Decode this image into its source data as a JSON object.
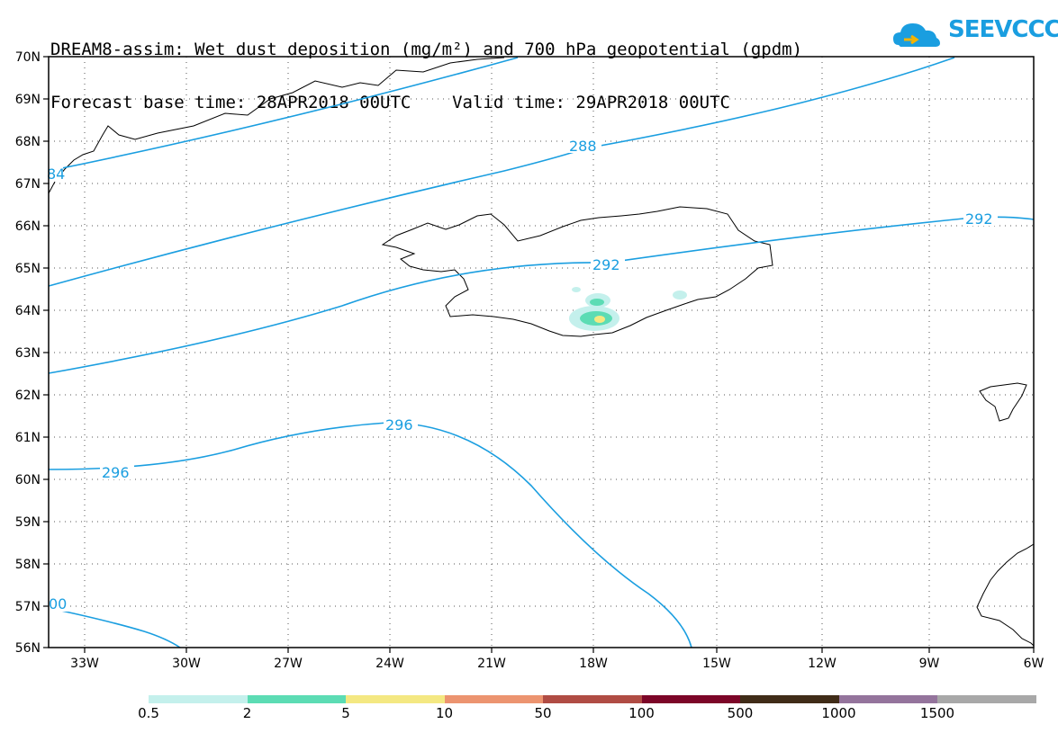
{
  "title": {
    "line1": "DREAM8-assim: Wet dust deposition (mg/m²) and 700 hPa geopotential (gpdm)",
    "line2": "Forecast base time: 28APR2018 00UTC    Valid time: 29APR2018 00UTC"
  },
  "logo": {
    "text": "SEEVCCC",
    "icon": "cloud-icon",
    "color": "#1a9ee0"
  },
  "map": {
    "lat_labels": [
      "70N",
      "69N",
      "68N",
      "67N",
      "66N",
      "65N",
      "64N",
      "63N",
      "62N",
      "61N",
      "60N",
      "59N",
      "58N",
      "57N",
      "56N"
    ],
    "lon_labels": [
      "33W",
      "30W",
      "27W",
      "24W",
      "21W",
      "18W",
      "15W",
      "12W",
      "9W",
      "6W"
    ],
    "contour_color": "#1a9ee0",
    "contour_labels": [
      "288",
      "292",
      "292",
      "296",
      "296",
      "84",
      "00"
    ]
  },
  "legend": {
    "colors": [
      "#c4f0ec",
      "#5cdcb4",
      "#f4e882",
      "#ec9470",
      "#b04c44",
      "#7c0628",
      "#402c18",
      "#94749c",
      "#a8a8a8"
    ],
    "labels": [
      "0.5",
      "2",
      "5",
      "10",
      "50",
      "100",
      "500",
      "1000",
      "1500"
    ]
  }
}
